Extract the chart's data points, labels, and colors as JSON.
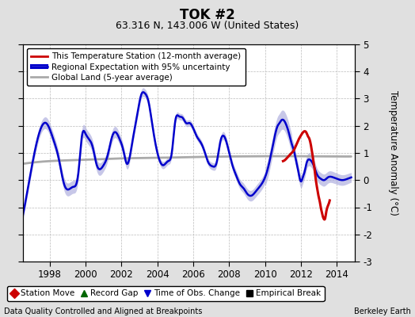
{
  "title": "TOK #2",
  "subtitle": "63.316 N, 143.006 W (United States)",
  "ylabel": "Temperature Anomaly (°C)",
  "footer_left": "Data Quality Controlled and Aligned at Breakpoints",
  "footer_right": "Berkeley Earth",
  "xlim": [
    1996.5,
    2015.0
  ],
  "ylim": [
    -3,
    5
  ],
  "yticks": [
    -3,
    -2,
    -1,
    0,
    1,
    2,
    3,
    4,
    5
  ],
  "xticks": [
    1998,
    2000,
    2002,
    2004,
    2006,
    2008,
    2010,
    2012,
    2014
  ],
  "background_color": "#e0e0e0",
  "plot_bg_color": "#ffffff",
  "grid_color": "#bbbbbb",
  "regional_color": "#0000cc",
  "regional_fill_color": "#aaaadd",
  "station_color": "#cc0000",
  "global_color": "#aaaaaa",
  "regional_line": [
    [
      1996.5,
      -1.3
    ],
    [
      1997.0,
      0.5
    ],
    [
      1997.5,
      1.9
    ],
    [
      1997.8,
      2.1
    ],
    [
      1998.2,
      1.5
    ],
    [
      1998.5,
      0.8
    ],
    [
      1998.8,
      -0.15
    ],
    [
      1999.3,
      -0.25
    ],
    [
      1999.6,
      0.3
    ],
    [
      1999.8,
      1.65
    ],
    [
      2000.0,
      1.7
    ],
    [
      2000.2,
      1.5
    ],
    [
      2000.4,
      1.2
    ],
    [
      2000.6,
      0.6
    ],
    [
      2001.0,
      0.55
    ],
    [
      2001.2,
      0.85
    ],
    [
      2001.5,
      1.65
    ],
    [
      2001.7,
      1.75
    ],
    [
      2001.9,
      1.5
    ],
    [
      2002.1,
      1.1
    ],
    [
      2002.3,
      0.6
    ],
    [
      2002.6,
      1.4
    ],
    [
      2002.9,
      2.5
    ],
    [
      2003.1,
      3.15
    ],
    [
      2003.3,
      3.2
    ],
    [
      2003.5,
      2.9
    ],
    [
      2003.7,
      2.1
    ],
    [
      2004.0,
      1.0
    ],
    [
      2004.3,
      0.55
    ],
    [
      2004.6,
      0.7
    ],
    [
      2004.8,
      1.0
    ],
    [
      2005.0,
      2.2
    ],
    [
      2005.2,
      2.35
    ],
    [
      2005.4,
      2.3
    ],
    [
      2005.6,
      2.1
    ],
    [
      2005.8,
      2.1
    ],
    [
      2006.0,
      1.9
    ],
    [
      2006.2,
      1.6
    ],
    [
      2006.4,
      1.4
    ],
    [
      2006.6,
      1.1
    ],
    [
      2006.8,
      0.7
    ],
    [
      2007.1,
      0.5
    ],
    [
      2007.3,
      0.65
    ],
    [
      2007.5,
      1.4
    ],
    [
      2007.8,
      1.5
    ],
    [
      2008.0,
      1.0
    ],
    [
      2008.2,
      0.5
    ],
    [
      2008.4,
      0.15
    ],
    [
      2008.6,
      -0.15
    ],
    [
      2008.8,
      -0.3
    ],
    [
      2009.0,
      -0.5
    ],
    [
      2009.3,
      -0.55
    ],
    [
      2009.5,
      -0.4
    ],
    [
      2009.8,
      -0.15
    ],
    [
      2010.1,
      0.3
    ],
    [
      2010.3,
      0.85
    ],
    [
      2010.5,
      1.5
    ],
    [
      2010.7,
      2.0
    ],
    [
      2010.8,
      2.1
    ],
    [
      2010.9,
      2.2
    ],
    [
      2011.1,
      2.15
    ],
    [
      2011.2,
      2.0
    ],
    [
      2011.3,
      1.8
    ],
    [
      2011.5,
      1.3
    ],
    [
      2011.6,
      1.1
    ],
    [
      2011.7,
      0.8
    ],
    [
      2011.8,
      0.5
    ],
    [
      2011.9,
      0.15
    ],
    [
      2012.0,
      -0.05
    ],
    [
      2012.1,
      0.1
    ],
    [
      2012.2,
      0.3
    ],
    [
      2012.3,
      0.6
    ],
    [
      2012.5,
      0.75
    ],
    [
      2012.7,
      0.55
    ],
    [
      2012.9,
      0.2
    ],
    [
      2013.1,
      0.05
    ],
    [
      2013.3,
      0.0
    ],
    [
      2013.5,
      0.1
    ],
    [
      2013.8,
      0.1
    ],
    [
      2014.0,
      0.05
    ],
    [
      2014.3,
      0.0
    ],
    [
      2014.6,
      0.05
    ],
    [
      2014.8,
      0.1
    ]
  ],
  "station_line": [
    [
      2011.0,
      0.7
    ],
    [
      2011.2,
      0.8
    ],
    [
      2011.4,
      0.95
    ],
    [
      2011.6,
      1.1
    ],
    [
      2011.8,
      1.4
    ],
    [
      2012.0,
      1.65
    ],
    [
      2012.1,
      1.75
    ],
    [
      2012.2,
      1.8
    ],
    [
      2012.3,
      1.75
    ],
    [
      2012.4,
      1.6
    ],
    [
      2012.45,
      1.55
    ],
    [
      2012.5,
      1.45
    ],
    [
      2012.55,
      1.3
    ],
    [
      2012.6,
      1.1
    ],
    [
      2012.65,
      0.9
    ],
    [
      2012.7,
      0.65
    ],
    [
      2012.75,
      0.45
    ],
    [
      2012.8,
      0.15
    ],
    [
      2012.85,
      -0.1
    ],
    [
      2012.9,
      -0.3
    ],
    [
      2012.95,
      -0.5
    ],
    [
      2013.0,
      -0.65
    ],
    [
      2013.05,
      -0.8
    ],
    [
      2013.1,
      -1.0
    ],
    [
      2013.15,
      -1.15
    ],
    [
      2013.2,
      -1.3
    ],
    [
      2013.25,
      -1.4
    ],
    [
      2013.3,
      -1.45
    ],
    [
      2013.35,
      -1.4
    ],
    [
      2013.4,
      -1.2
    ],
    [
      2013.5,
      -0.95
    ],
    [
      2013.6,
      -0.75
    ]
  ],
  "global_line": [
    [
      1996.5,
      0.6
    ],
    [
      1998.0,
      0.7
    ],
    [
      2000.0,
      0.75
    ],
    [
      2002.0,
      0.8
    ],
    [
      2004.0,
      0.82
    ],
    [
      2006.0,
      0.85
    ],
    [
      2008.0,
      0.87
    ],
    [
      2010.0,
      0.88
    ],
    [
      2012.0,
      0.88
    ],
    [
      2014.0,
      0.87
    ],
    [
      2014.8,
      0.87
    ]
  ]
}
